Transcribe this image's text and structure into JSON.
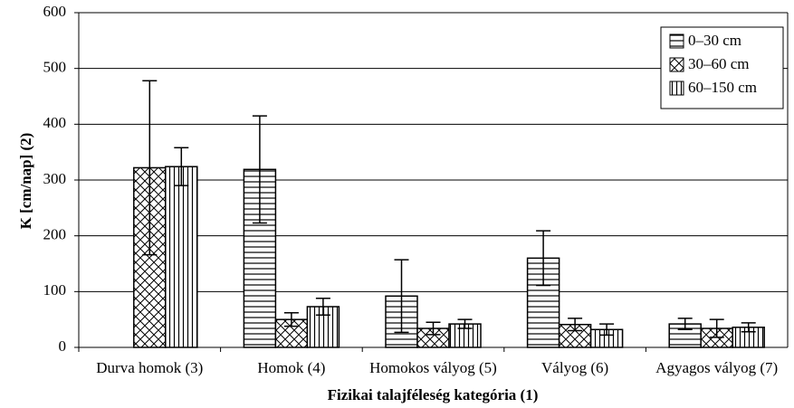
{
  "chart_data": {
    "type": "bar",
    "x_label": "Fizikai talajféleség kategória (1)",
    "y_label": "K [cm/nap] (2)",
    "categories": [
      "Durva homok (3)",
      "Homok (4)",
      "Homokos vályog (5)",
      "Vályog (6)",
      "Agyagos vályog (7)"
    ],
    "series": [
      {
        "name": "0–30 cm",
        "pattern": "horizontal",
        "values": [
          null,
          319,
          92,
          160,
          42
        ],
        "errors": [
          null,
          96,
          65,
          49,
          10
        ]
      },
      {
        "name": "30–60 cm",
        "pattern": "crosshatch",
        "values": [
          322,
          50,
          34,
          41,
          34
        ],
        "errors": [
          156,
          12,
          11,
          11,
          16
        ]
      },
      {
        "name": "60–150 cm",
        "pattern": "vertical",
        "values": [
          324,
          73,
          42,
          32,
          36
        ],
        "errors": [
          34,
          15,
          8,
          10,
          8
        ]
      }
    ],
    "ylim": [
      0,
      600
    ],
    "yticks": [
      0,
      100,
      200,
      300,
      400,
      500,
      600
    ],
    "grid": true,
    "legend": "top-right"
  }
}
